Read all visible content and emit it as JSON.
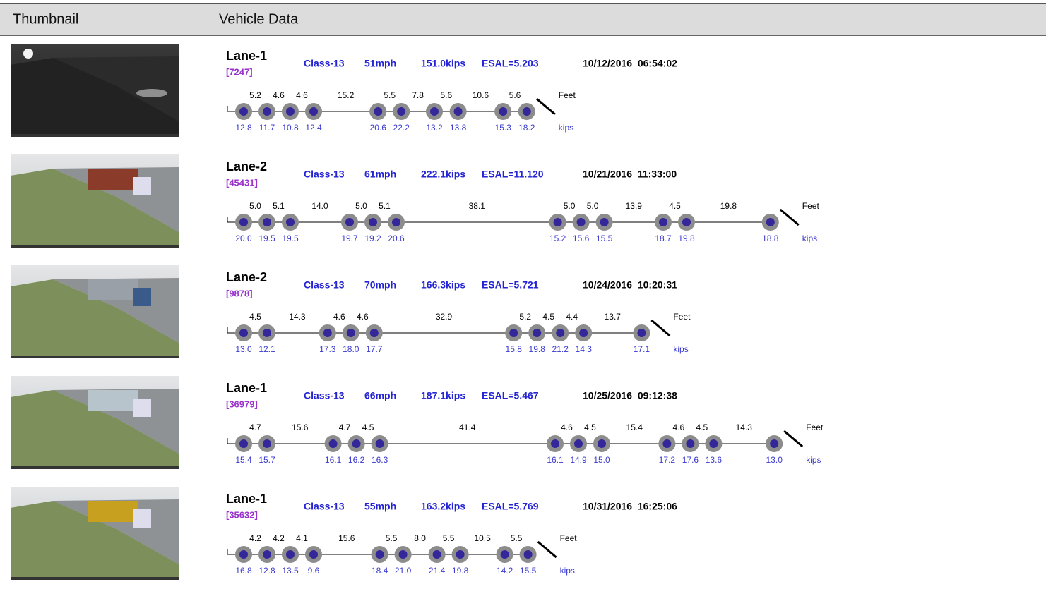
{
  "header": {
    "thumbnail": "Thumbnail",
    "vehicle_data": "Vehicle Data"
  },
  "rows": [
    {
      "lane": "Lane-1",
      "id": "[7247]",
      "class": "Class-13",
      "speed": "51mph",
      "weight": "151.0kips",
      "esal": "ESAL=5.203",
      "datetime": "10/12/2016  06:54:02",
      "spacings": [
        "5.2",
        "4.6",
        "4.6",
        "15.2",
        "5.5",
        "7.8",
        "5.6",
        "10.6",
        "5.6"
      ],
      "spacing_unit": "Feet",
      "weights": [
        "12.8",
        "11.7",
        "10.8",
        "12.4",
        "20.6",
        "22.2",
        "13.2",
        "13.8",
        "15.3",
        "18.2"
      ],
      "weight_unit": "kips"
    },
    {
      "lane": "Lane-2",
      "id": "[45431]",
      "class": "Class-13",
      "speed": "61mph",
      "weight": "222.1kips",
      "esal": "ESAL=11.120",
      "datetime": "10/21/2016  11:33:00",
      "spacings": [
        "5.0",
        "5.1",
        "14.0",
        "5.0",
        "5.1",
        "38.1",
        "5.0",
        "5.0",
        "13.9",
        "4.5",
        "19.8"
      ],
      "spacing_unit": "Feet",
      "weights": [
        "20.0",
        "19.5",
        "19.5",
        "19.7",
        "19.2",
        "20.6",
        "15.2",
        "15.6",
        "15.5",
        "18.7",
        "19.8",
        "18.8"
      ],
      "weight_unit": "kips"
    },
    {
      "lane": "Lane-2",
      "id": "[9878]",
      "class": "Class-13",
      "speed": "70mph",
      "weight": "166.3kips",
      "esal": "ESAL=5.721",
      "datetime": "10/24/2016  10:20:31",
      "spacings": [
        "4.5",
        "14.3",
        "4.6",
        "4.6",
        "32.9",
        "5.2",
        "4.5",
        "4.4",
        "13.7"
      ],
      "spacing_unit": "Feet",
      "weights": [
        "13.0",
        "12.1",
        "17.3",
        "18.0",
        "17.7",
        "15.8",
        "19.8",
        "21.2",
        "14.3",
        "17.1"
      ],
      "weight_unit": "kips"
    },
    {
      "lane": "Lane-1",
      "id": "[36979]",
      "class": "Class-13",
      "speed": "66mph",
      "weight": "187.1kips",
      "esal": "ESAL=5.467",
      "datetime": "10/25/2016  09:12:38",
      "spacings": [
        "4.7",
        "15.6",
        "4.7",
        "4.5",
        "41.4",
        "4.6",
        "4.5",
        "15.4",
        "4.6",
        "4.5",
        "14.3"
      ],
      "spacing_unit": "Feet",
      "weights": [
        "15.4",
        "15.7",
        "16.1",
        "16.2",
        "16.3",
        "16.1",
        "14.9",
        "15.0",
        "17.2",
        "17.6",
        "13.6",
        "13.0"
      ],
      "weight_unit": "kips"
    },
    {
      "lane": "Lane-1",
      "id": "[35632]",
      "class": "Class-13",
      "speed": "55mph",
      "weight": "163.2kips",
      "esal": "ESAL=5.769",
      "datetime": "10/31/2016  16:25:06",
      "spacings": [
        "4.2",
        "4.2",
        "4.1",
        "15.6",
        "5.5",
        "8.0",
        "5.5",
        "10.5",
        "5.5"
      ],
      "spacing_unit": "Feet",
      "weights": [
        "16.8",
        "12.8",
        "13.5",
        "9.6",
        "18.4",
        "21.0",
        "21.4",
        "19.8",
        "14.2",
        "15.5"
      ],
      "weight_unit": "kips"
    }
  ]
}
